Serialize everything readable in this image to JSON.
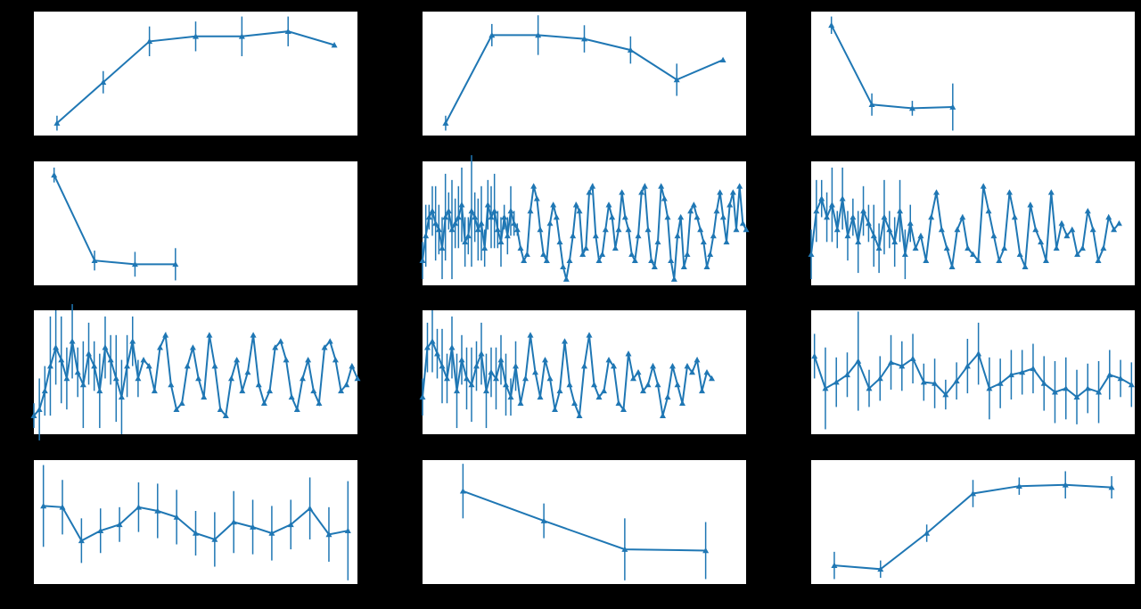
{
  "chart_data": [
    {
      "type": "line",
      "color": "#1f77b4",
      "xlim": [
        -0.5,
        6.5
      ],
      "ylim": [
        0,
        100
      ],
      "values": [
        10,
        43,
        76,
        80,
        80,
        84,
        73
      ],
      "errors": [
        6,
        9,
        12,
        12,
        16,
        12,
        0
      ]
    },
    {
      "type": "line",
      "color": "#1f77b4",
      "xlim": [
        -0.5,
        6.5
      ],
      "ylim": [
        0,
        100
      ],
      "values": [
        10,
        81,
        81,
        78,
        69,
        45,
        61
      ],
      "errors": [
        6,
        9,
        16,
        11,
        11,
        13,
        0
      ]
    },
    {
      "type": "line",
      "color": "#1f77b4",
      "xlim": [
        -0.5,
        7.5
      ],
      "ylim": [
        0,
        100
      ],
      "values": [
        89,
        25,
        22,
        23
      ],
      "errors": [
        7,
        9,
        6,
        19
      ]
    },
    {
      "type": "line",
      "color": "#1f77b4",
      "xlim": [
        -0.5,
        7.5
      ],
      "ylim": [
        0,
        100
      ],
      "values": [
        89,
        20,
        17,
        17
      ],
      "errors": [
        6,
        8,
        10,
        13
      ]
    },
    {
      "type": "line",
      "color": "#1f77b4",
      "xlim": [
        0,
        99
      ],
      "ylim": [
        0,
        100
      ],
      "values": [
        20,
        40,
        55,
        60,
        50,
        45,
        30,
        55,
        60,
        45,
        50,
        55,
        65,
        35,
        40,
        60,
        55,
        45,
        50,
        30,
        65,
        55,
        60,
        45,
        35,
        55,
        40,
        60,
        50,
        45,
        30,
        20,
        25,
        60,
        80,
        70,
        45,
        25,
        20,
        50,
        65,
        55,
        35,
        15,
        5,
        20,
        40,
        65,
        60,
        25,
        30,
        75,
        80,
        40,
        20,
        25,
        45,
        65,
        55,
        30,
        45,
        75,
        55,
        45,
        25,
        20,
        40,
        75,
        80,
        45,
        20,
        15,
        35,
        80,
        70,
        55,
        20,
        5,
        40,
        55,
        15,
        25,
        60,
        65,
        55,
        45,
        35,
        15,
        25,
        40,
        60,
        75,
        55,
        35,
        65,
        75,
        45,
        80,
        50,
        45
      ],
      "errors": [
        15,
        25,
        10,
        20,
        30,
        20,
        25,
        35,
        15,
        40,
        20,
        25,
        30,
        20,
        15,
        45,
        20,
        25,
        30,
        15,
        20,
        25,
        30,
        15,
        20,
        10,
        15,
        20,
        10,
        5,
        0,
        0,
        0,
        0,
        0,
        0,
        0,
        0,
        0,
        0,
        0,
        0,
        0,
        0,
        0,
        0,
        0,
        0,
        0,
        0,
        0,
        0,
        0,
        0,
        0,
        0,
        0,
        0,
        0,
        0,
        0,
        0,
        0,
        0,
        0,
        0,
        0,
        0,
        0,
        0,
        0,
        0,
        0,
        0,
        0,
        0,
        0,
        0,
        0,
        0,
        0,
        0,
        0,
        0,
        0,
        0,
        0,
        0,
        0,
        0,
        0,
        0,
        0,
        0,
        0,
        0,
        0,
        0,
        0,
        0
      ]
    },
    {
      "type": "line",
      "color": "#1f77b4",
      "xlim": [
        0,
        62
      ],
      "ylim": [
        0,
        100
      ],
      "values": [
        25,
        60,
        70,
        55,
        65,
        45,
        70,
        40,
        55,
        35,
        60,
        50,
        40,
        30,
        55,
        45,
        35,
        60,
        25,
        50,
        30,
        40,
        20,
        55,
        75,
        45,
        30,
        15,
        45,
        55,
        30,
        25,
        20,
        80,
        60,
        40,
        20,
        30,
        75,
        55,
        25,
        15,
        65,
        45,
        35,
        20,
        75,
        30,
        50,
        40,
        45,
        25,
        30,
        60,
        45,
        20,
        30,
        55,
        45,
        50
      ],
      "errors": [
        20,
        25,
        15,
        20,
        30,
        15,
        25,
        20,
        15,
        25,
        20,
        15,
        25,
        20,
        30,
        15,
        20,
        25,
        20,
        15,
        0,
        0,
        0,
        0,
        0,
        0,
        0,
        0,
        0,
        0,
        0,
        0,
        0,
        0,
        0,
        0,
        0,
        0,
        0,
        0,
        0,
        0,
        0,
        0,
        0,
        0,
        0,
        0,
        0,
        0,
        0,
        0,
        0,
        0,
        0,
        0,
        0,
        0,
        0,
        0
      ]
    },
    {
      "type": "line",
      "color": "#1f77b4",
      "xlim": [
        0,
        59
      ],
      "ylim": [
        0,
        100
      ],
      "values": [
        15,
        20,
        35,
        55,
        70,
        60,
        45,
        75,
        50,
        40,
        65,
        55,
        35,
        70,
        60,
        45,
        30,
        55,
        75,
        45,
        60,
        55,
        35,
        70,
        80,
        40,
        20,
        25,
        55,
        70,
        45,
        30,
        80,
        55,
        20,
        15,
        45,
        60,
        35,
        50,
        80,
        40,
        25,
        35,
        70,
        75,
        60,
        30,
        20,
        45,
        60,
        35,
        25,
        70,
        75,
        60,
        35,
        40,
        55,
        45
      ],
      "errors": [
        10,
        25,
        20,
        40,
        30,
        35,
        25,
        30,
        20,
        35,
        25,
        20,
        30,
        25,
        20,
        35,
        30,
        25,
        20,
        15,
        0,
        0,
        0,
        0,
        0,
        0,
        0,
        0,
        0,
        0,
        0,
        0,
        0,
        0,
        0,
        0,
        0,
        0,
        0,
        0,
        0,
        0,
        0,
        0,
        0,
        0,
        0,
        0,
        0,
        0,
        0,
        0,
        0,
        0,
        0,
        0,
        0,
        0,
        0,
        0
      ]
    },
    {
      "type": "line",
      "color": "#1f77b4",
      "xlim": [
        0,
        66
      ],
      "ylim": [
        0,
        100
      ],
      "values": [
        30,
        70,
        75,
        65,
        55,
        45,
        70,
        35,
        60,
        45,
        40,
        55,
        65,
        35,
        50,
        45,
        60,
        40,
        30,
        55,
        25,
        45,
        80,
        50,
        30,
        60,
        45,
        20,
        35,
        75,
        40,
        25,
        15,
        55,
        80,
        40,
        30,
        35,
        60,
        55,
        25,
        20,
        65,
        45,
        50,
        35,
        40,
        55,
        40,
        15,
        30,
        55,
        40,
        25,
        55,
        50,
        60,
        35,
        50,
        45
      ],
      "errors": [
        15,
        20,
        25,
        20,
        30,
        20,
        25,
        30,
        20,
        25,
        30,
        20,
        25,
        30,
        20,
        25,
        20,
        25,
        15,
        20,
        0,
        0,
        0,
        0,
        0,
        0,
        0,
        0,
        0,
        0,
        0,
        0,
        0,
        0,
        0,
        0,
        0,
        0,
        0,
        0,
        0,
        0,
        0,
        0,
        0,
        0,
        0,
        0,
        0,
        0,
        0,
        0,
        0,
        0,
        0,
        0,
        0,
        0,
        0,
        0
      ]
    },
    {
      "type": "line",
      "color": "#1f77b4",
      "xlim": [
        -0.3,
        29.3
      ],
      "ylim": [
        0,
        100
      ],
      "values": [
        63,
        37,
        42,
        48,
        59,
        37,
        45,
        58,
        55,
        61,
        42,
        41,
        32,
        43,
        55,
        65,
        37,
        41,
        48,
        50,
        53,
        41,
        34,
        37,
        30,
        37,
        34,
        48,
        45,
        40
      ],
      "errors": [
        18,
        33,
        20,
        18,
        40,
        15,
        18,
        22,
        20,
        20,
        15,
        20,
        12,
        15,
        22,
        25,
        25,
        20,
        20,
        18,
        20,
        22,
        25,
        25,
        22,
        20,
        25,
        20,
        15,
        18
      ]
    },
    {
      "type": "line",
      "color": "#1f77b4",
      "xlim": [
        -0.5,
        16.5
      ],
      "ylim": [
        0,
        100
      ],
      "values": [
        63,
        62,
        35,
        43,
        48,
        62,
        59,
        54,
        41,
        36,
        50,
        46,
        41,
        48,
        61,
        40,
        43
      ],
      "errors": [
        33,
        22,
        18,
        18,
        14,
        20,
        22,
        22,
        18,
        22,
        25,
        22,
        22,
        20,
        25,
        22,
        40
      ]
    },
    {
      "type": "line",
      "color": "#1f77b4",
      "xlim": [
        -0.5,
        3.5
      ],
      "ylim": [
        0,
        100
      ],
      "values": [
        75,
        51,
        28,
        27
      ],
      "errors": [
        22,
        14,
        25,
        23
      ]
    },
    {
      "type": "line",
      "color": "#1f77b4",
      "xlim": [
        -0.5,
        6.5
      ],
      "ylim": [
        0,
        100
      ],
      "values": [
        15,
        12,
        41,
        73,
        79,
        80,
        78
      ],
      "errors": [
        11,
        7,
        7,
        11,
        7,
        11,
        9
      ]
    }
  ]
}
